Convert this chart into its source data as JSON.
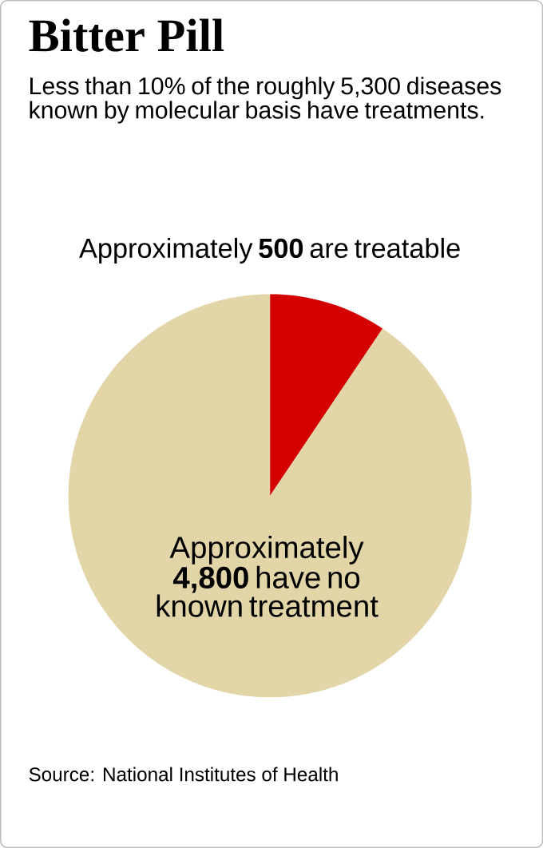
{
  "chart_data": {
    "type": "pie",
    "title": "Bitter Pill",
    "subtitle": "Less than 10% of the roughly 5,300 diseases known by molecular basis have treatments.",
    "categories": [
      "Approximately **500** are treatable",
      "Approximately **4,800** have no known treatment"
    ],
    "values": [
      500,
      4800
    ],
    "colors": [
      "#d40000",
      "#e2d5a8"
    ],
    "annotations": [
      "Source: National Institutes of Health"
    ]
  }
}
